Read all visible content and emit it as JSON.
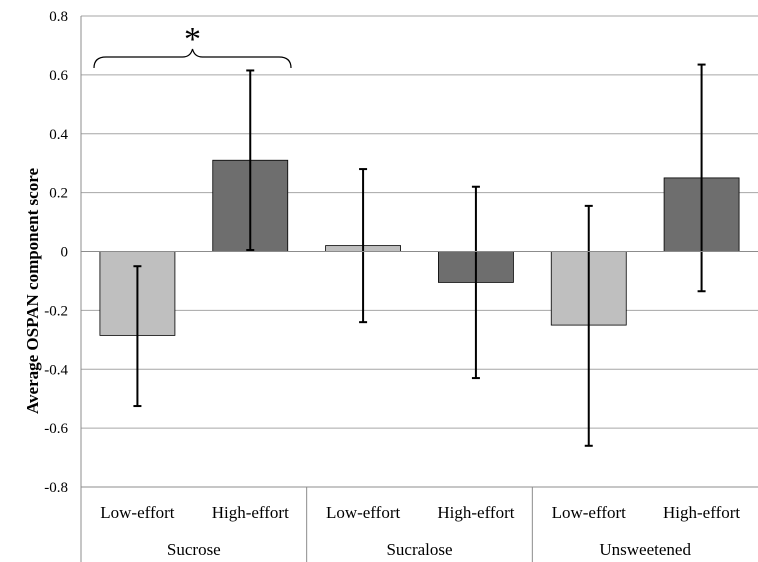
{
  "chart_data": {
    "type": "bar",
    "title": "",
    "ylabel": "Average OSPAN component score",
    "xlabel": "",
    "ylim": [
      -0.8,
      0.8
    ],
    "yticks": [
      -0.8,
      -0.6,
      -0.4,
      -0.2,
      0,
      0.2,
      0.4,
      0.6,
      0.8
    ],
    "ytick_labels": [
      "-0.8",
      "-0.6",
      "-0.4",
      "-0.2",
      "0",
      "0.2",
      "0.4",
      "0.6",
      "0.8"
    ],
    "grid": true,
    "groups": [
      "Sucrose",
      "Sucralose",
      "Unsweetened"
    ],
    "categories": [
      "Low-effort",
      "High-effort",
      "Low-effort",
      "High-effort",
      "Low-effort",
      "High-effort"
    ],
    "bars": [
      {
        "group": "Sucrose",
        "condition": "Low-effort",
        "value": -0.285,
        "err_low": -0.525,
        "err_high": -0.05
      },
      {
        "group": "Sucrose",
        "condition": "High-effort",
        "value": 0.31,
        "err_low": 0.005,
        "err_high": 0.615
      },
      {
        "group": "Sucralose",
        "condition": "Low-effort",
        "value": 0.02,
        "err_low": -0.24,
        "err_high": 0.28
      },
      {
        "group": "Sucralose",
        "condition": "High-effort",
        "value": -0.105,
        "err_low": -0.43,
        "err_high": 0.22
      },
      {
        "group": "Unsweetened",
        "condition": "Low-effort",
        "value": -0.25,
        "err_low": -0.66,
        "err_high": 0.155
      },
      {
        "group": "Unsweetened",
        "condition": "High-effort",
        "value": 0.25,
        "err_low": -0.135,
        "err_high": 0.635
      }
    ],
    "annotations": [
      {
        "text": "*",
        "spans": [
          "Sucrose Low-effort",
          "Sucrose High-effort"
        ]
      }
    ],
    "colors": {
      "low_effort": "#bfbfbf",
      "high_effort": "#6e6e6e",
      "bar_outline": "#000000",
      "grid": "#a6a6a6",
      "axis": "#8c8c8c"
    }
  }
}
